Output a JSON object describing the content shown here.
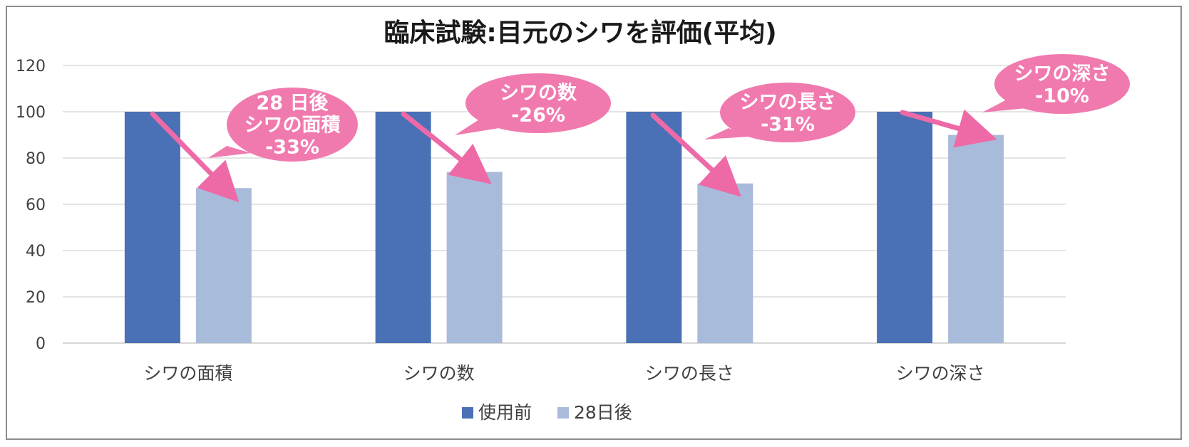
{
  "chart_data": {
    "type": "bar",
    "title": "臨床試験:目元のシワを評価(平均)",
    "categories": [
      "シワの面積",
      "シワの数",
      "シワの長さ",
      "シワの深さ"
    ],
    "series": [
      {
        "name": "使用前",
        "values": [
          100,
          100,
          100,
          100
        ],
        "color": "#4a70b5"
      },
      {
        "name": "28日後",
        "values": [
          67,
          74,
          69,
          90
        ],
        "color": "#a8bbdb"
      }
    ],
    "ylim": [
      0,
      120
    ],
    "y_ticks": [
      "0",
      "20",
      "40",
      "60",
      "80",
      "100",
      "120"
    ],
    "grid": true,
    "legend_position": "bottom",
    "annotations": [
      {
        "category": "シワの面積",
        "lines": [
          "28 日後",
          "シワの面積",
          "-33%"
        ]
      },
      {
        "category": "シワの数",
        "lines": [
          "シワの数",
          "-26%"
        ]
      },
      {
        "category": "シワの長さ",
        "lines": [
          "シワの長さ",
          "-31%"
        ]
      },
      {
        "category": "シワの深さ",
        "lines": [
          "シワの深さ",
          "-10%"
        ]
      }
    ],
    "callout_color": "#f07aae",
    "arrow_color": "#ee6aa7"
  }
}
